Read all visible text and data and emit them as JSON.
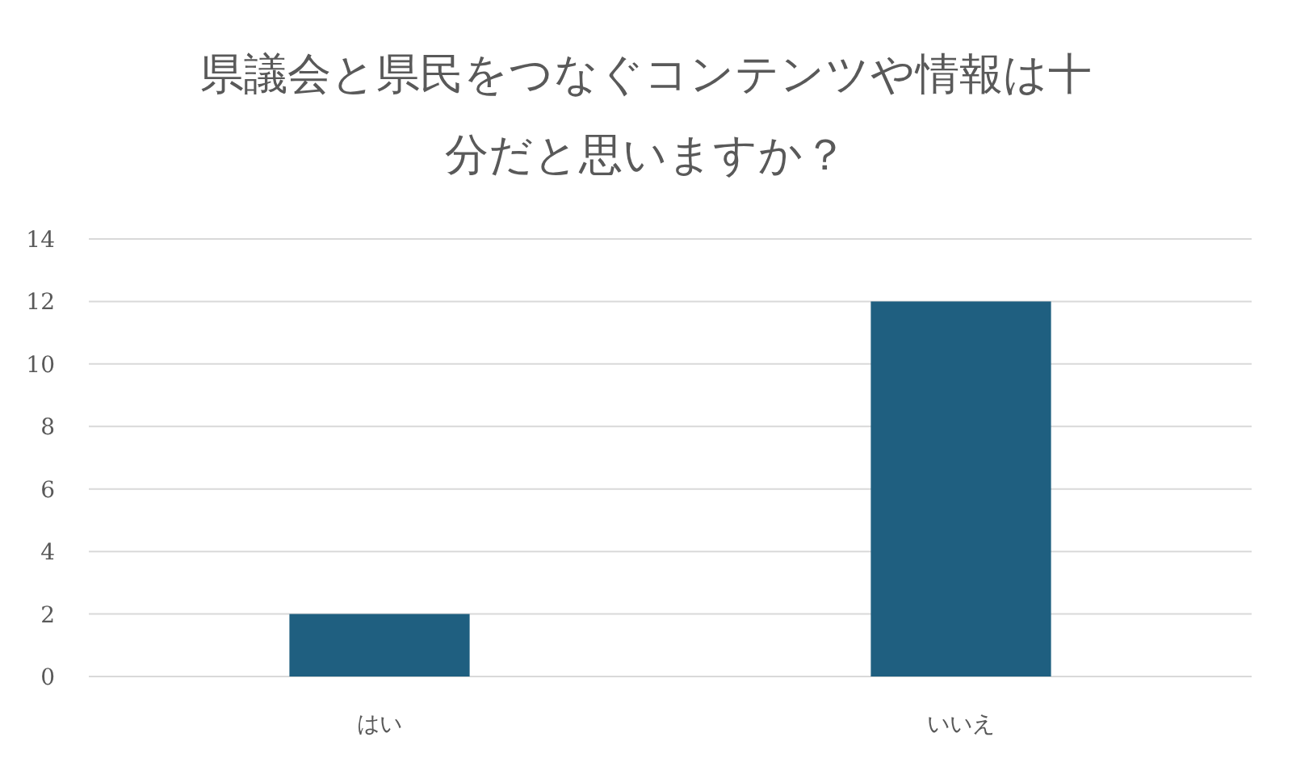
{
  "chart_data": {
    "type": "bar",
    "title": "県議会と県民をつなぐコンテンツや情報は十分だと思いますか？",
    "categories": [
      "はい",
      "いいえ"
    ],
    "values": [
      2,
      12
    ],
    "color": "#1f5f80",
    "ylim": [
      0,
      14
    ],
    "yticks": [
      0,
      2,
      4,
      6,
      8,
      10,
      12,
      14
    ],
    "grid": "y"
  }
}
